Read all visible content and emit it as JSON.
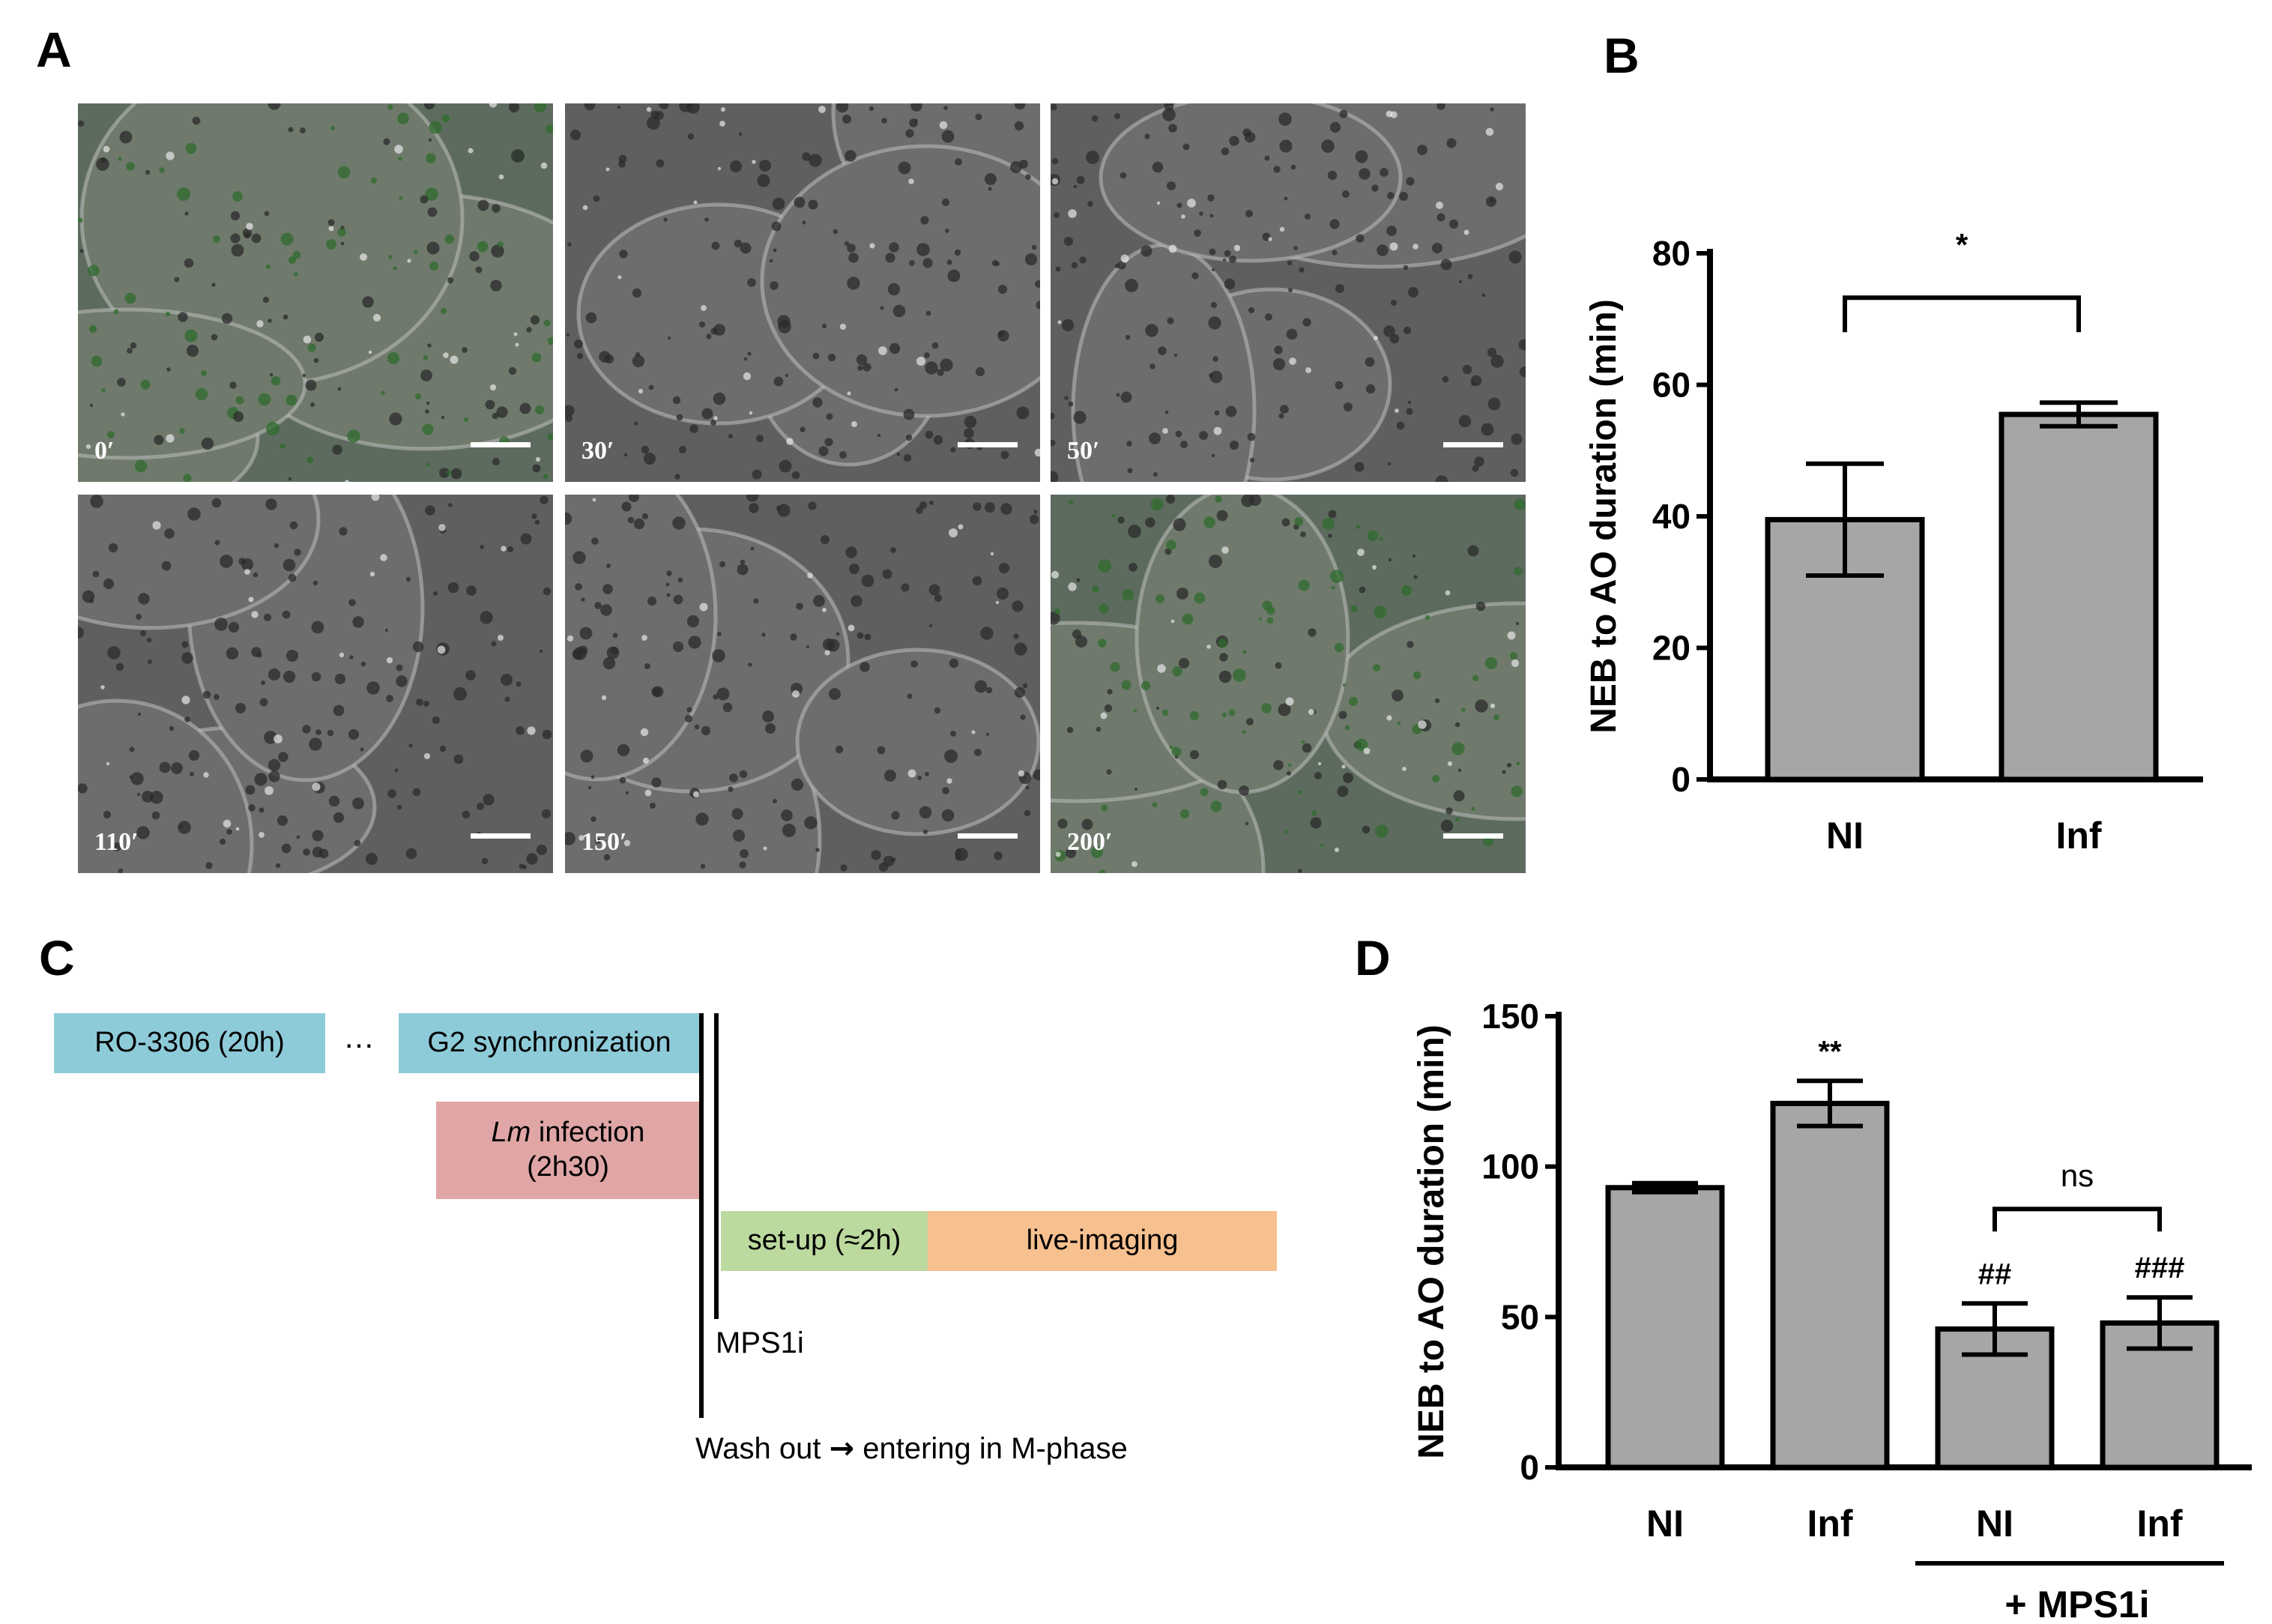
{
  "panels": {
    "a": "A",
    "b": "B",
    "c": "C",
    "d": "D"
  },
  "micrographs": [
    {
      "time": "0′",
      "tint": "green"
    },
    {
      "time": "30′",
      "tint": "gray"
    },
    {
      "time": "50′",
      "tint": "gray"
    },
    {
      "time": "110′",
      "tint": "gray"
    },
    {
      "time": "150′",
      "tint": "gray"
    },
    {
      "time": "200′",
      "tint": "green"
    }
  ],
  "timeline": {
    "ro3306": "RO-3306 (20h)",
    "ellipsis": "…",
    "g2sync": "G2 synchronization",
    "lm_italic": "Lm",
    "lm_rest": " infection",
    "lm_duration": "(2h30)",
    "setup": "set-up (≈2h)",
    "live": "live-imaging",
    "mps1i": "MPS1i",
    "washout_a": "Wash out",
    "washout_arrow": "→",
    "washout_b": "entering in M-phase",
    "colors": {
      "ro": "#8ecbd9",
      "lm": "#e0a6a6",
      "setup": "#bcd99e",
      "live": "#f7c08f"
    }
  },
  "chart_data": [
    {
      "type": "bar",
      "panel": "B",
      "categories": [
        "NI",
        "Inf"
      ],
      "values": [
        39.5,
        55.5
      ],
      "errors": [
        8.5,
        1.8
      ],
      "ylabel": "NEB to AO duration (min)",
      "ylim": [
        0,
        80
      ],
      "yticks": [
        0,
        20,
        40,
        60,
        80
      ],
      "annotations": [
        {
          "between": [
            0,
            1
          ],
          "text": "*"
        }
      ],
      "bar_color": "#a6a6a6",
      "grid": false
    },
    {
      "type": "bar",
      "panel": "D",
      "categories": [
        "NI",
        "Inf",
        "NI",
        "Inf"
      ],
      "values": [
        93,
        121,
        46,
        48
      ],
      "errors": [
        1.5,
        7.5,
        8.5,
        8.5
      ],
      "ylabel": "NEB to AO duration (min)",
      "ylim": [
        0,
        150
      ],
      "yticks": [
        0,
        50,
        100,
        150
      ],
      "bar_labels": [
        "",
        "**",
        "##",
        "###"
      ],
      "annotations": [
        {
          "between": [
            2,
            3
          ],
          "text": "ns"
        }
      ],
      "group_label": {
        "indices": [
          2,
          3
        ],
        "text": "+ MPS1i"
      },
      "bar_color": "#a6a6a6",
      "grid": false
    }
  ]
}
